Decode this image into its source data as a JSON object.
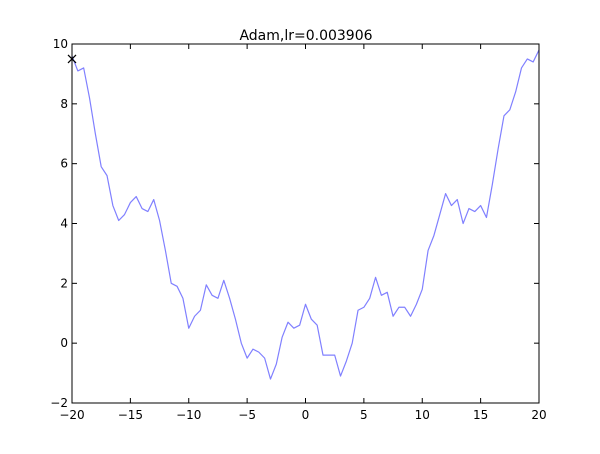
{
  "chart_data": {
    "type": "line",
    "title": "Adam,lr=0.003906",
    "xlabel": "",
    "ylabel": "",
    "xlim": [
      -20,
      20
    ],
    "ylim": [
      -2,
      10
    ],
    "grid": false,
    "x_ticks": [
      -20,
      -15,
      -10,
      -5,
      0,
      5,
      10,
      15,
      20
    ],
    "x_tick_labels": [
      "−20",
      "−15",
      "−10",
      "−5",
      "0",
      "5",
      "10",
      "15",
      "20"
    ],
    "y_ticks": [
      -2,
      0,
      2,
      4,
      6,
      8,
      10
    ],
    "y_tick_labels": [
      "−2",
      "0",
      "2",
      "4",
      "6",
      "8",
      "10"
    ],
    "series": [
      {
        "name": "",
        "color": "#8080ff",
        "x": [
          -20.0,
          -19.5,
          -19.0,
          -18.5,
          -18.0,
          -17.5,
          -17.0,
          -16.5,
          -16.0,
          -15.5,
          -15.0,
          -14.5,
          -14.0,
          -13.5,
          -13.0,
          -12.5,
          -12.0,
          -11.5,
          -11.0,
          -10.5,
          -10.0,
          -9.5,
          -9.0,
          -8.5,
          -8.0,
          -7.5,
          -7.0,
          -6.5,
          -6.0,
          -5.5,
          -5.0,
          -4.5,
          -4.0,
          -3.5,
          -3.0,
          -2.5,
          -2.0,
          -1.5,
          -1.0,
          -0.5,
          0.0,
          0.5,
          1.0,
          1.5,
          2.0,
          2.5,
          3.0,
          3.5,
          4.0,
          4.5,
          5.0,
          5.5,
          6.0,
          6.5,
          7.0,
          7.5,
          8.0,
          8.5,
          9.0,
          9.5,
          10.0,
          10.5,
          11.0,
          11.5,
          12.0,
          12.5,
          13.0,
          13.5,
          14.0,
          14.5,
          15.0,
          15.5,
          16.0,
          16.5,
          17.0,
          17.5,
          18.0,
          18.5,
          19.0,
          19.5,
          20.0
        ],
        "y": [
          9.6,
          9.1,
          9.2,
          8.2,
          7.0,
          5.9,
          5.6,
          4.6,
          4.1,
          4.3,
          4.7,
          4.9,
          4.5,
          4.4,
          4.8,
          4.1,
          3.1,
          2.0,
          1.9,
          1.5,
          0.5,
          0.9,
          1.1,
          1.95,
          1.6,
          1.5,
          2.1,
          1.5,
          0.8,
          0.0,
          -0.5,
          -0.2,
          -0.3,
          -0.5,
          -1.2,
          -0.7,
          0.2,
          0.7,
          0.5,
          0.6,
          1.3,
          0.8,
          0.6,
          -0.4,
          -0.4,
          -0.4,
          -1.1,
          -0.6,
          0.0,
          1.1,
          1.2,
          1.5,
          2.2,
          1.6,
          1.7,
          0.9,
          1.2,
          1.2,
          0.9,
          1.3,
          1.8,
          3.1,
          3.6,
          4.3,
          5.0,
          4.6,
          4.8,
          4.0,
          4.5,
          4.4,
          4.6,
          4.2,
          5.3,
          6.5,
          7.6,
          7.8,
          8.4,
          9.2,
          9.5,
          9.4,
          9.8
        ]
      }
    ],
    "marker": {
      "symbol": "x",
      "x": -20,
      "y": 9.5,
      "color": "#000000"
    }
  }
}
